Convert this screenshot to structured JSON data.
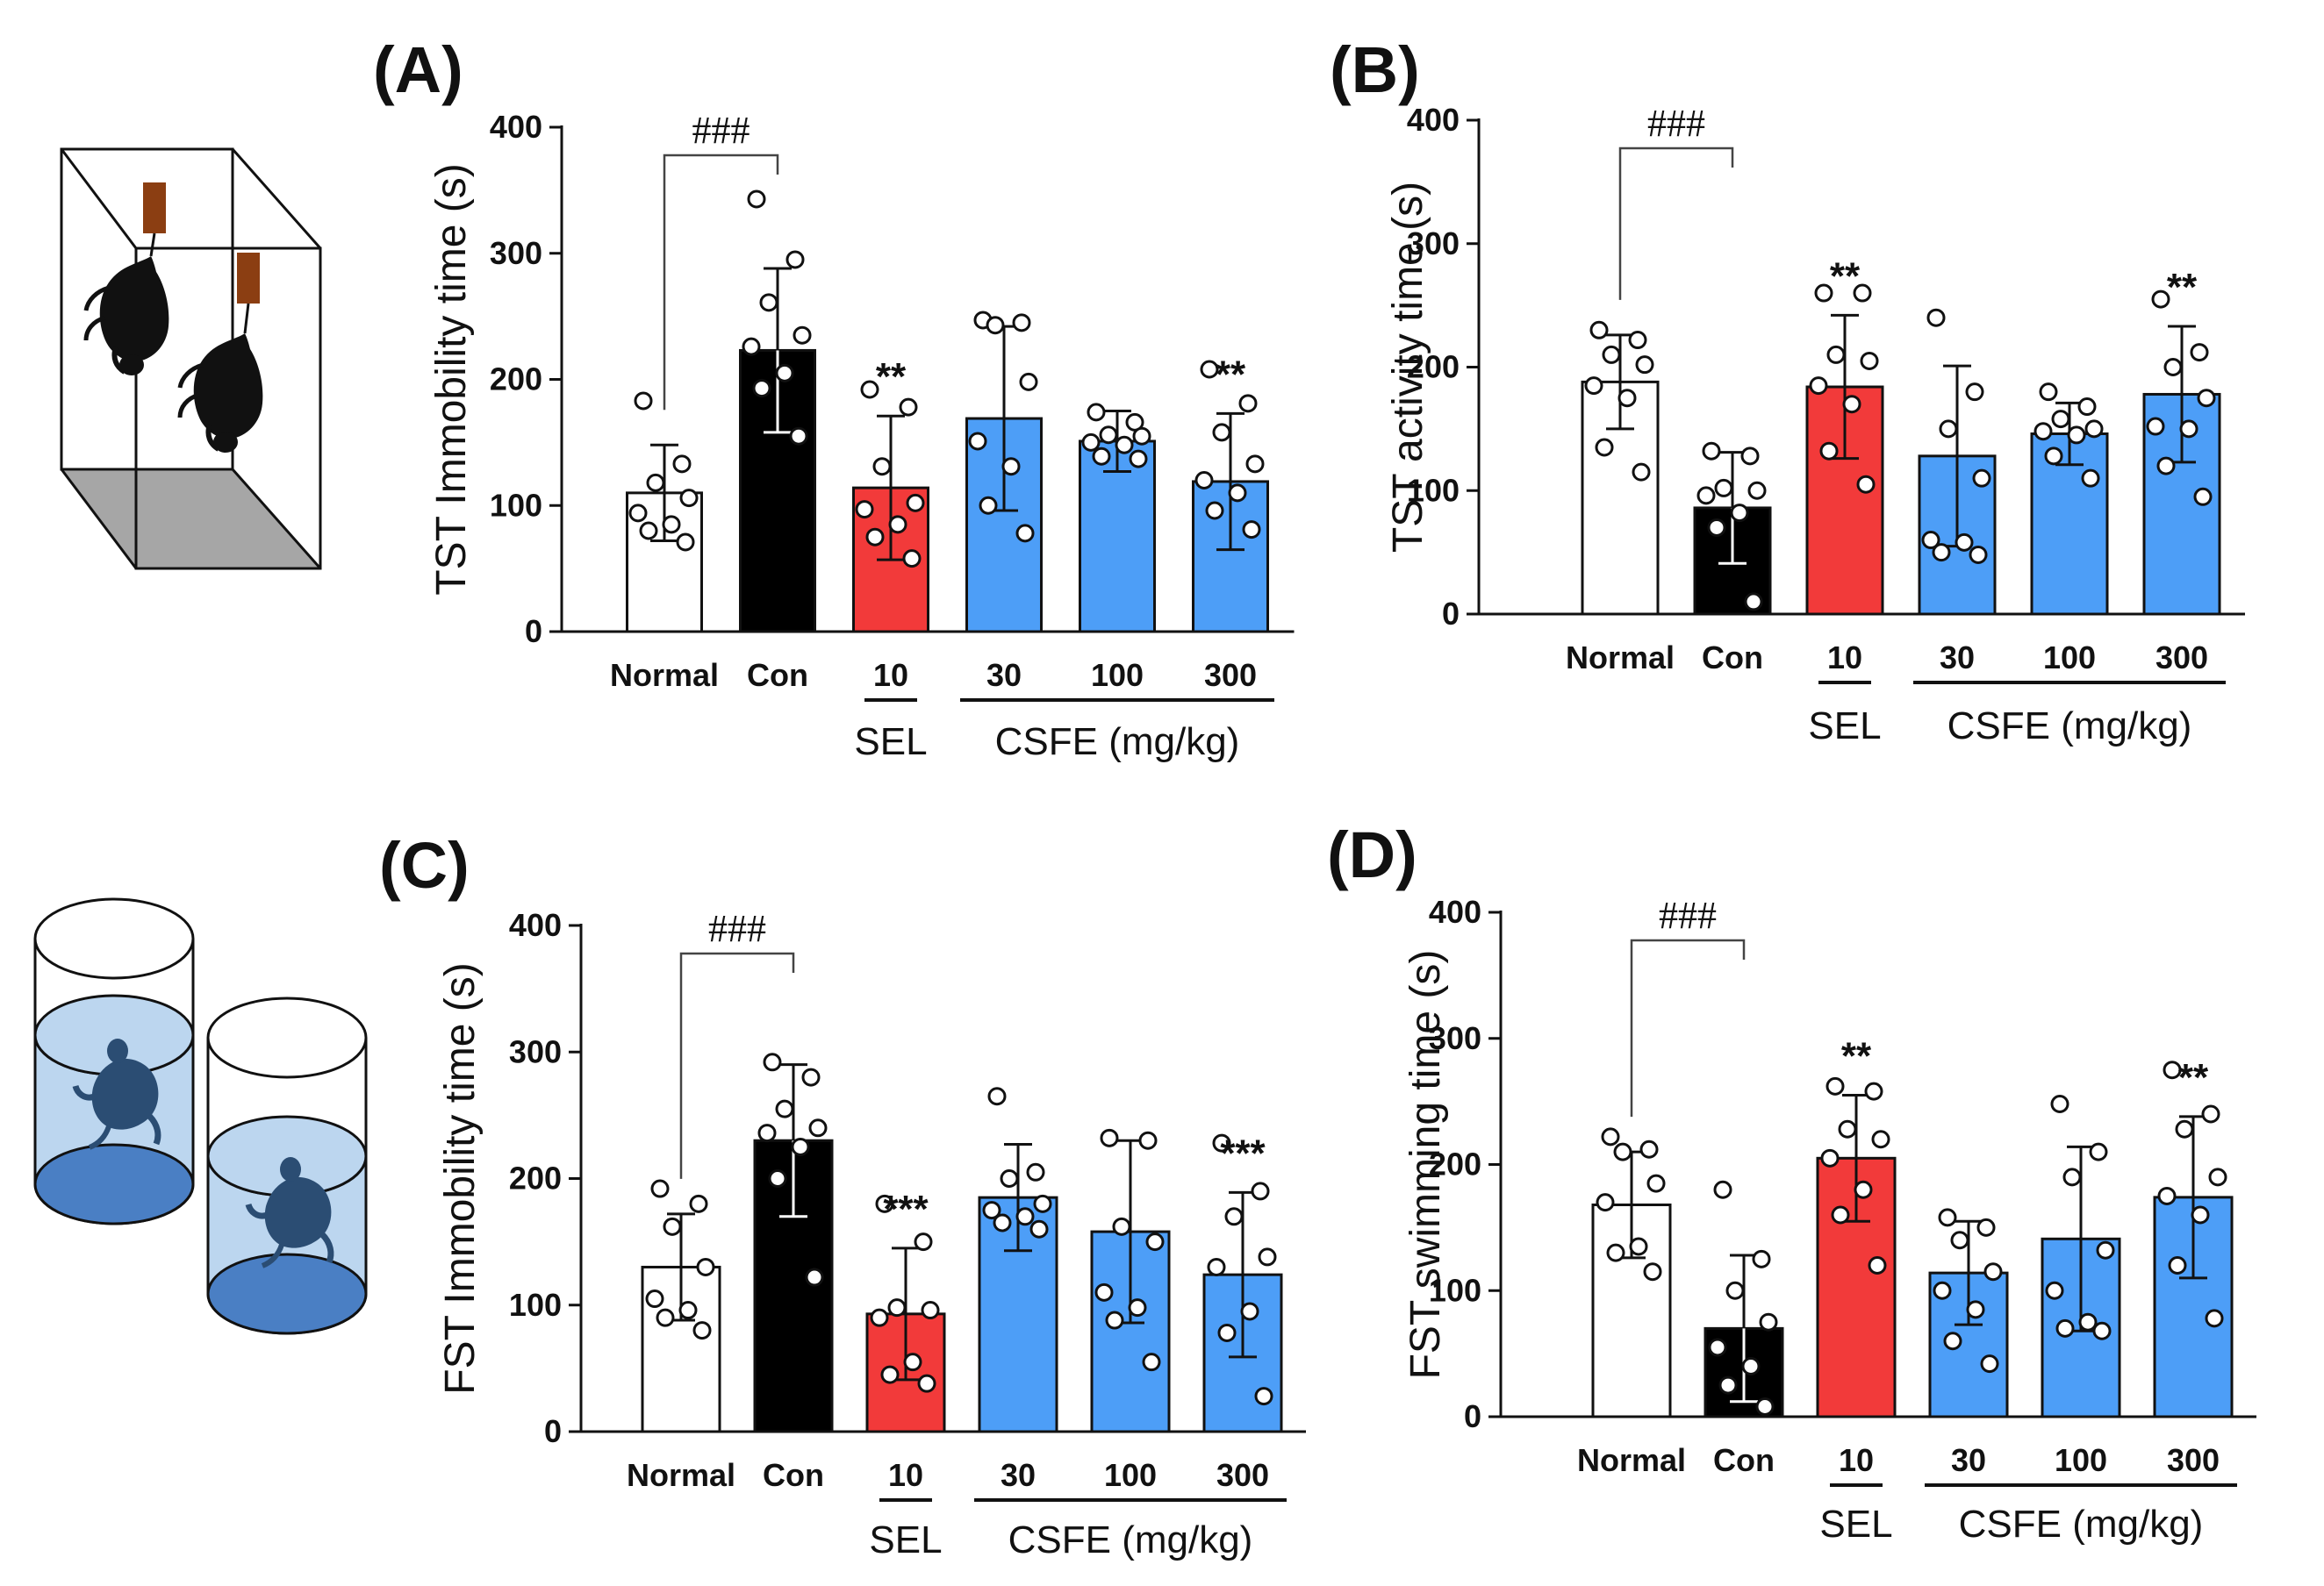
{
  "colors": {
    "normal": "#ffffff",
    "con": "#000000",
    "sel": "#f23a3a",
    "csfe": "#4d9ef7",
    "outline": "#111111"
  },
  "illustrations": [
    {
      "name": "tail-suspension-test-illustration",
      "icon": "mouse-tail-suspension-icon"
    },
    {
      "name": "forced-swim-test-illustration",
      "icon": "mouse-swim-cylinder-icon"
    }
  ],
  "chart_data": [
    {
      "type": "bar",
      "panel": "(A)",
      "ylabel": "TST Immobility time (s)",
      "ylim": [
        0,
        400
      ],
      "yticks": [
        "0",
        "100",
        "200",
        "300",
        "400"
      ],
      "categories": [
        "Normal",
        "Con",
        "10",
        "30",
        "100",
        "300"
      ],
      "groups": [
        {
          "label": "SEL",
          "span": [
            2,
            2
          ]
        },
        {
          "label": "CSFE (mg/kg)",
          "span": [
            3,
            5
          ]
        }
      ],
      "values": [
        110,
        223,
        114,
        169,
        151,
        119
      ],
      "sd": [
        38,
        65,
        57,
        73,
        24,
        54
      ],
      "points": [
        [
          183,
          133,
          118,
          106,
          94,
          85,
          80,
          71
        ],
        [
          343,
          295,
          261,
          235,
          226,
          205,
          193,
          155
        ],
        [
          192,
          178,
          131,
          102,
          97,
          85,
          75,
          58
        ],
        [
          247,
          245,
          243,
          198,
          151,
          131,
          100,
          78
        ],
        [
          174,
          166,
          156,
          155,
          150,
          148,
          139,
          137
        ],
        [
          208,
          181,
          158,
          133,
          120,
          110,
          96,
          81
        ]
      ],
      "significance": [
        "",
        "",
        "**",
        "",
        "",
        "**"
      ],
      "bracket": {
        "from": 0,
        "to": 1,
        "label": "###"
      }
    },
    {
      "type": "bar",
      "panel": "(B)",
      "ylabel": "TST activity time (s)",
      "ylim": [
        0,
        400
      ],
      "yticks": [
        "0",
        "100",
        "200",
        "300",
        "400"
      ],
      "categories": [
        "Normal",
        "Con",
        "10",
        "30",
        "100",
        "300"
      ],
      "groups": [
        {
          "label": "SEL",
          "span": [
            2,
            2
          ]
        },
        {
          "label": "CSFE (mg/kg)",
          "span": [
            3,
            5
          ]
        }
      ],
      "values": [
        188,
        86,
        184,
        128,
        146,
        178
      ],
      "sd": [
        38,
        45,
        58,
        73,
        25,
        55
      ],
      "points": [
        [
          230,
          222,
          210,
          202,
          185,
          175,
          135,
          115
        ],
        [
          132,
          128,
          102,
          100,
          96,
          82,
          70,
          10
        ],
        [
          260,
          260,
          210,
          205,
          185,
          170,
          132,
          105
        ],
        [
          240,
          180,
          150,
          110,
          60,
          58,
          50,
          48
        ],
        [
          180,
          168,
          158,
          150,
          148,
          145,
          128,
          110
        ],
        [
          255,
          212,
          200,
          175,
          152,
          150,
          120,
          95
        ]
      ],
      "significance": [
        "",
        "",
        "**",
        "",
        "",
        "**"
      ],
      "bracket": {
        "from": 0,
        "to": 1,
        "label": "###"
      }
    },
    {
      "type": "bar",
      "panel": "(C)",
      "ylabel": "FST Immobility time (s)",
      "ylim": [
        0,
        400
      ],
      "yticks": [
        "0",
        "100",
        "200",
        "300",
        "400"
      ],
      "categories": [
        "Normal",
        "Con",
        "10",
        "30",
        "100",
        "300"
      ],
      "groups": [
        {
          "label": "SEL",
          "span": [
            2,
            2
          ]
        },
        {
          "label": "CSFE (mg/kg)",
          "span": [
            3,
            5
          ]
        }
      ],
      "values": [
        130,
        230,
        93,
        185,
        158,
        124
      ],
      "sd": [
        42,
        60,
        52,
        42,
        72,
        65
      ],
      "points": [
        [
          192,
          180,
          162,
          130,
          105,
          96,
          90,
          80
        ],
        [
          292,
          280,
          255,
          240,
          236,
          225,
          200,
          122
        ],
        [
          180,
          150,
          98,
          96,
          90,
          55,
          45,
          38
        ],
        [
          265,
          205,
          200,
          180,
          175,
          170,
          165,
          160
        ],
        [
          232,
          230,
          162,
          150,
          110,
          98,
          88,
          55
        ],
        [
          228,
          190,
          170,
          138,
          130,
          95,
          78,
          28
        ]
      ],
      "significance": [
        "",
        "",
        "***",
        "",
        "",
        "***"
      ],
      "bracket": {
        "from": 0,
        "to": 1,
        "label": "###"
      }
    },
    {
      "type": "bar",
      "panel": "(D)",
      "ylabel": "FST swimming time (s)",
      "ylim": [
        0,
        400
      ],
      "yticks": [
        "0",
        "100",
        "200",
        "300",
        "400"
      ],
      "categories": [
        "Normal",
        "Con",
        "10",
        "30",
        "100",
        "300"
      ],
      "groups": [
        {
          "label": "SEL",
          "span": [
            2,
            2
          ]
        },
        {
          "label": "CSFE (mg/kg)",
          "span": [
            3,
            5
          ]
        }
      ],
      "values": [
        168,
        70,
        205,
        114,
        141,
        174
      ],
      "sd": [
        42,
        58,
        50,
        41,
        73,
        64
      ],
      "points": [
        [
          222,
          212,
          210,
          185,
          170,
          135,
          130,
          115
        ],
        [
          180,
          125,
          100,
          75,
          55,
          40,
          25,
          8
        ],
        [
          262,
          258,
          228,
          220,
          205,
          180,
          160,
          120
        ],
        [
          158,
          150,
          140,
          115,
          100,
          85,
          60,
          42
        ],
        [
          248,
          210,
          190,
          132,
          100,
          75,
          70,
          68
        ],
        [
          275,
          240,
          228,
          190,
          175,
          160,
          120,
          78
        ]
      ],
      "significance": [
        "",
        "",
        "**",
        "",
        "",
        "**"
      ],
      "bracket": {
        "from": 0,
        "to": 1,
        "label": "###"
      }
    }
  ]
}
